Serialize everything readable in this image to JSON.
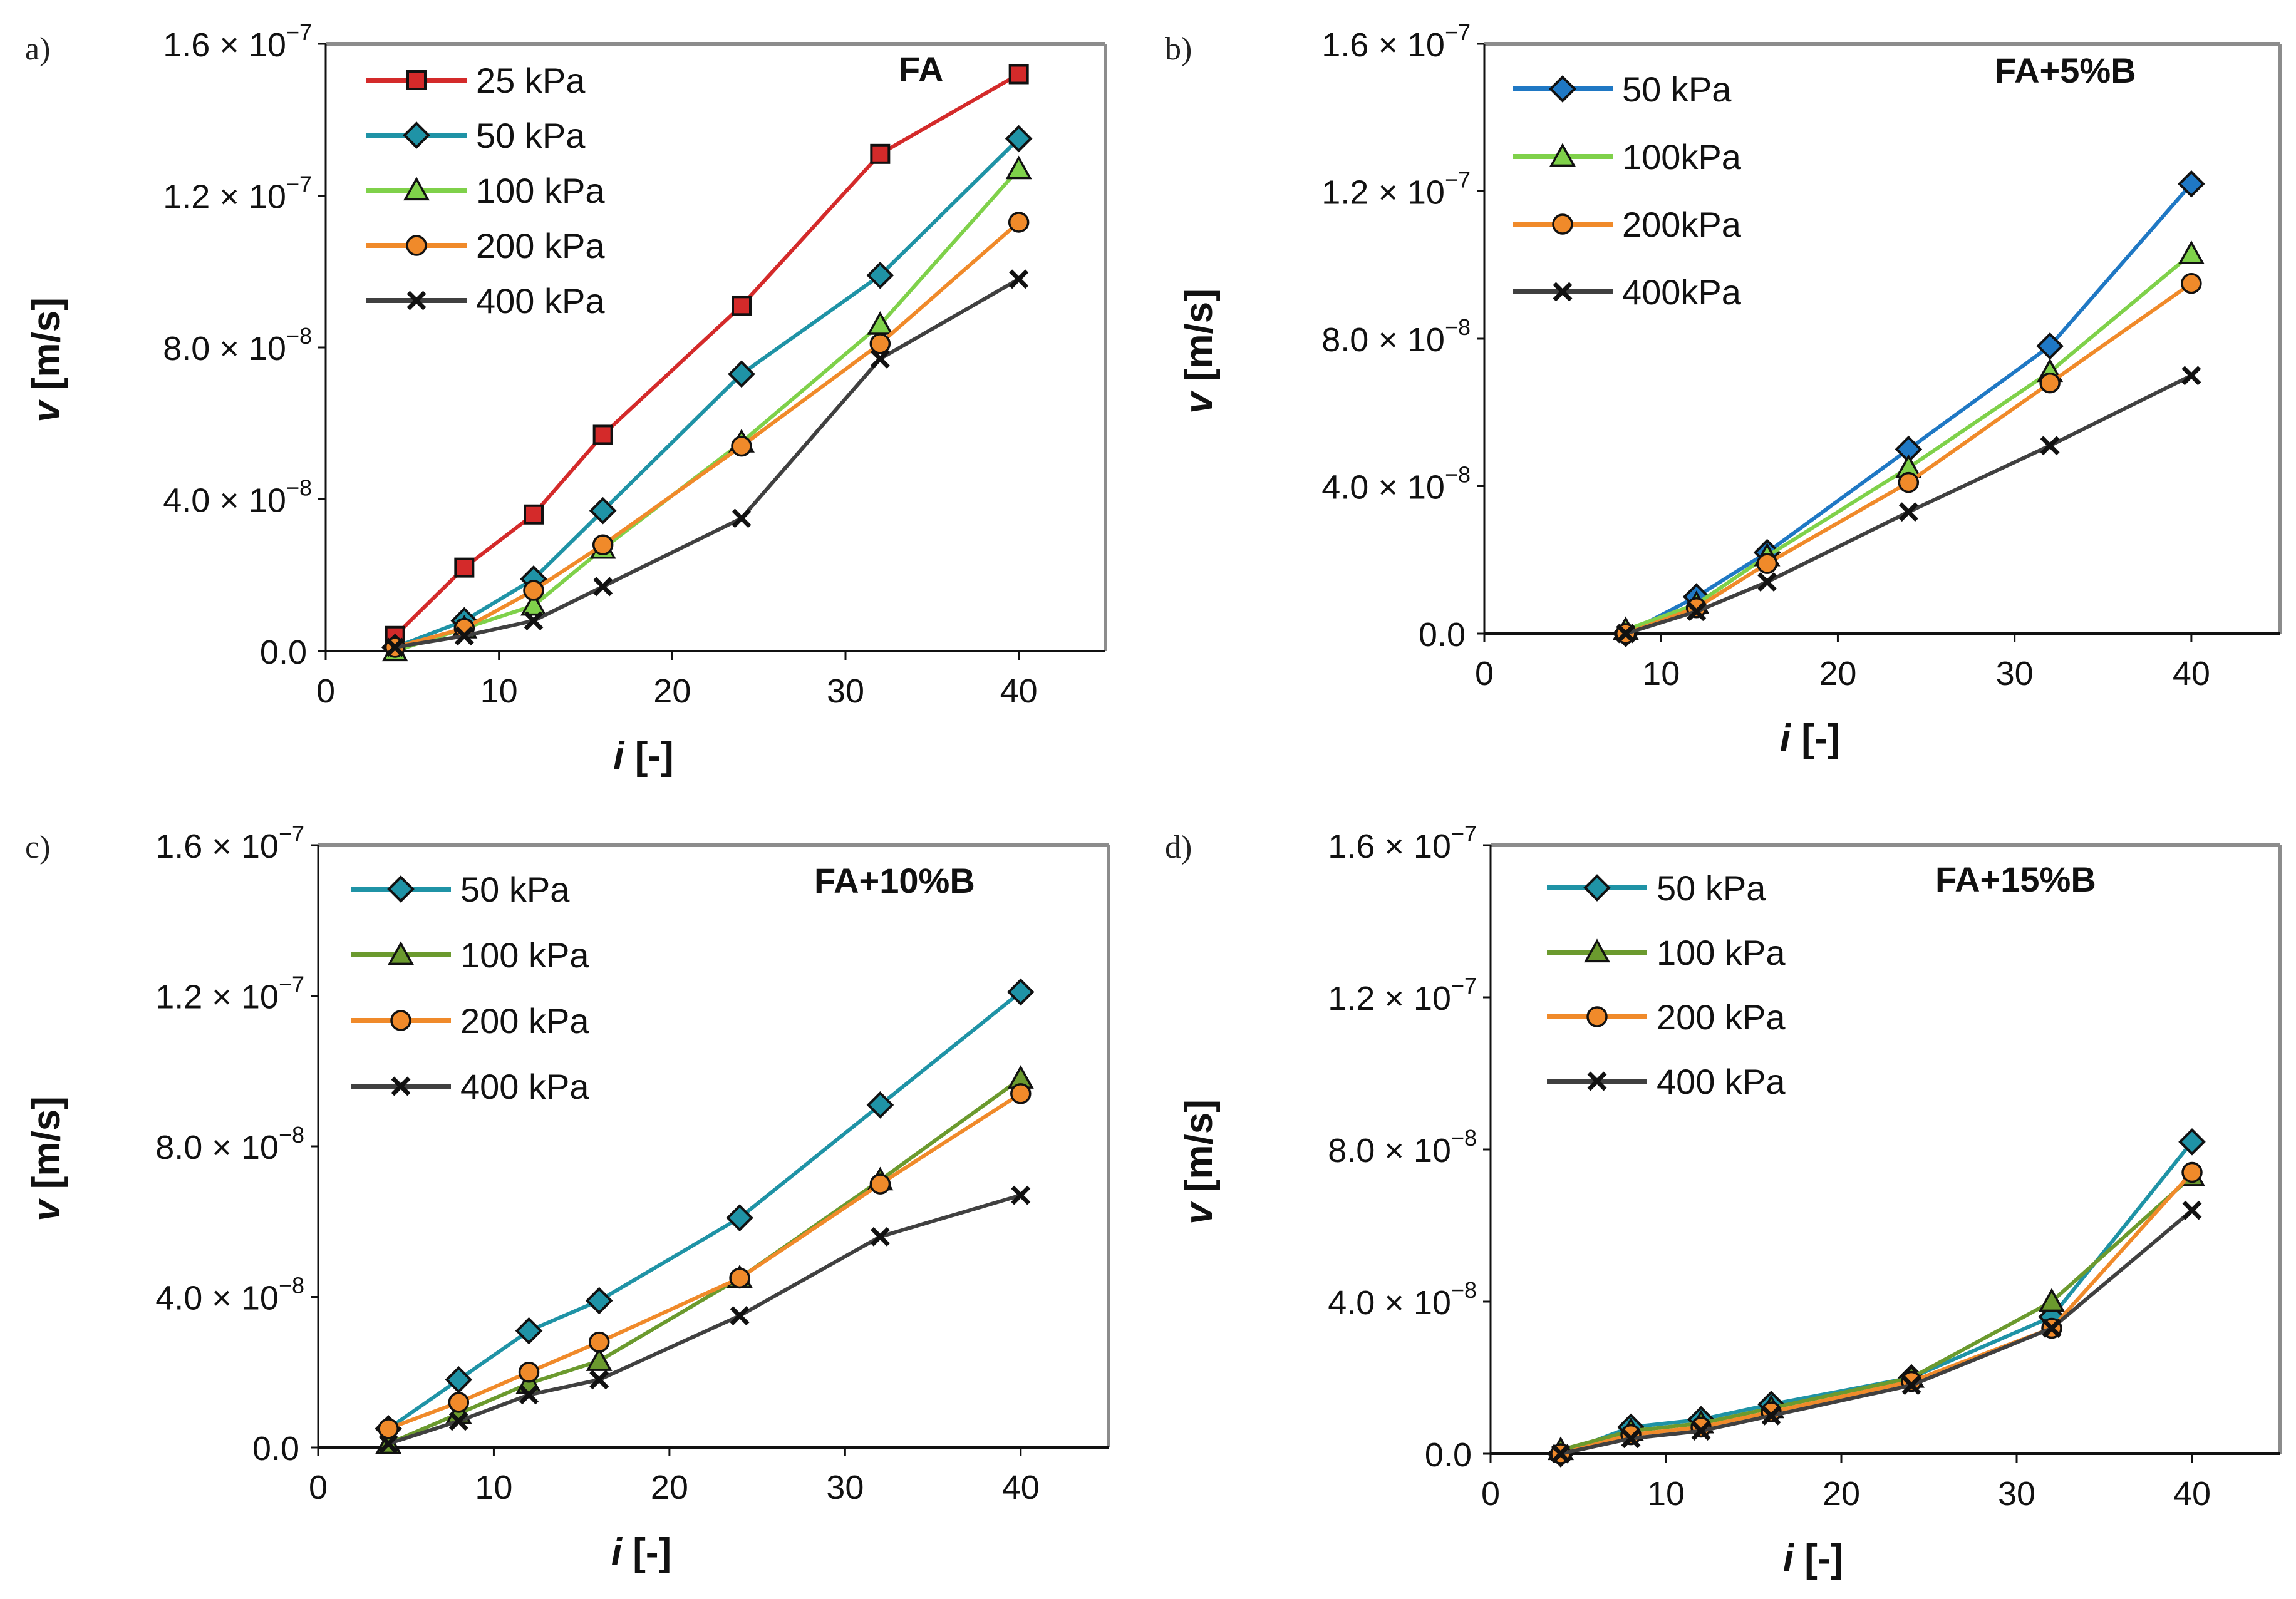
{
  "figure": {
    "colors": {
      "red": "#d42a2a",
      "teal": "#1f93a6",
      "blue": "#1f78c4",
      "light_green": "#7fd14a",
      "olive_green": "#6b9a2e",
      "orange": "#f08a2a",
      "gray": "#404040",
      "frame": "#8c8c8c"
    }
  },
  "chart_data": [
    {
      "panel": "a)",
      "type": "line",
      "annotation": "FA",
      "xlabel_italic": "i",
      "xlabel_rest": " [-]",
      "ylabel_italic": "v",
      "ylabel_rest": " [m/s]",
      "xlim": [
        0,
        45
      ],
      "ylim": [
        0,
        1.6e-07
      ],
      "xticks": [
        "0",
        "10",
        "20",
        "30",
        "40"
      ],
      "yticks": [
        {
          "mant": "0.0",
          "exp": ""
        },
        {
          "mant": "4.0 × 10",
          "exp": "−8"
        },
        {
          "mant": "8.0 × 10",
          "exp": "−8"
        },
        {
          "mant": "1.2 × 10",
          "exp": "−7"
        },
        {
          "mant": "1.6 × 10",
          "exp": "−7"
        }
      ],
      "legend_position": "top-left",
      "series": [
        {
          "name": "25 kPa",
          "color": "#d42a2a",
          "marker": "square",
          "x": [
            4,
            8,
            12,
            16,
            24,
            32,
            40
          ],
          "values": [
            4e-09,
            2.2e-08,
            3.6e-08,
            5.7e-08,
            9.1e-08,
            1.31e-07,
            1.52e-07
          ]
        },
        {
          "name": "50 kPa",
          "color": "#1f93a6",
          "marker": "diamond",
          "x": [
            4,
            8,
            12,
            16,
            24,
            32,
            40
          ],
          "values": [
            1e-09,
            8e-09,
            1.9e-08,
            3.7e-08,
            7.3e-08,
            9.9e-08,
            1.35e-07
          ]
        },
        {
          "name": "100 kPa",
          "color": "#7fd14a",
          "marker": "triangle",
          "x": [
            4,
            8,
            12,
            16,
            24,
            32,
            40
          ],
          "values": [
            0.0,
            6e-09,
            1.2e-08,
            2.7e-08,
            5.5e-08,
            8.6e-08,
            1.27e-07
          ]
        },
        {
          "name": "200 kPa",
          "color": "#f08a2a",
          "marker": "circle",
          "x": [
            4,
            8,
            12,
            16,
            24,
            32,
            40
          ],
          "values": [
            1e-09,
            6e-09,
            1.6e-08,
            2.8e-08,
            5.4e-08,
            8.1e-08,
            1.13e-07
          ]
        },
        {
          "name": "400 kPa",
          "color": "#404040",
          "marker": "x",
          "x": [
            4,
            8,
            12,
            16,
            24,
            32,
            40
          ],
          "values": [
            1e-09,
            4e-09,
            8e-09,
            1.7e-08,
            3.5e-08,
            7.7e-08,
            9.8e-08
          ]
        }
      ]
    },
    {
      "panel": "b)",
      "type": "line",
      "annotation": "FA+5%B",
      "xlabel_italic": "i",
      "xlabel_rest": " [-]",
      "ylabel_italic": "v",
      "ylabel_rest": " [m/s]",
      "xlim": [
        0,
        45
      ],
      "ylim": [
        0,
        1.6e-07
      ],
      "xticks": [
        "0",
        "10",
        "20",
        "30",
        "40"
      ],
      "yticks": [
        {
          "mant": "0.0",
          "exp": ""
        },
        {
          "mant": "4.0 × 10",
          "exp": "−8"
        },
        {
          "mant": "8.0 × 10",
          "exp": "−8"
        },
        {
          "mant": "1.2 × 10",
          "exp": "−7"
        },
        {
          "mant": "1.6 × 10",
          "exp": "−7"
        }
      ],
      "legend_position": "top-left",
      "series": [
        {
          "name": "50 kPa",
          "color": "#1f78c4",
          "marker": "diamond",
          "x": [
            8,
            12,
            16,
            24,
            32,
            40
          ],
          "values": [
            0.0,
            1e-08,
            2.2e-08,
            5e-08,
            7.8e-08,
            1.22e-07
          ]
        },
        {
          "name": "100kPa",
          "color": "#7fd14a",
          "marker": "triangle",
          "x": [
            8,
            12,
            16,
            24,
            32,
            40
          ],
          "values": [
            1e-09,
            8e-09,
            2.1e-08,
            4.5e-08,
            7.1e-08,
            1.03e-07
          ]
        },
        {
          "name": "200kPa",
          "color": "#f08a2a",
          "marker": "circle",
          "x": [
            8,
            12,
            16,
            24,
            32,
            40
          ],
          "values": [
            0.0,
            7e-09,
            1.9e-08,
            4.1e-08,
            6.8e-08,
            9.5e-08
          ]
        },
        {
          "name": "400kPa",
          "color": "#404040",
          "marker": "x",
          "x": [
            8,
            12,
            16,
            24,
            32,
            40
          ],
          "values": [
            0.0,
            6e-09,
            1.4e-08,
            3.3e-08,
            5.1e-08,
            7e-08
          ]
        }
      ]
    },
    {
      "panel": "c)",
      "type": "line",
      "annotation": "FA+10%B",
      "xlabel_italic": "i",
      "xlabel_rest": " [-]",
      "ylabel_italic": "v",
      "ylabel_rest": " [m/s]",
      "xlim": [
        0,
        45
      ],
      "ylim": [
        0,
        1.6e-07
      ],
      "xticks": [
        "0",
        "10",
        "20",
        "30",
        "40"
      ],
      "yticks": [
        {
          "mant": "0.0",
          "exp": ""
        },
        {
          "mant": "4.0 × 10",
          "exp": "−8"
        },
        {
          "mant": "8.0 × 10",
          "exp": "−8"
        },
        {
          "mant": "1.2 × 10",
          "exp": "−7"
        },
        {
          "mant": "1.6 × 10",
          "exp": "−7"
        }
      ],
      "legend_position": "top-left",
      "series": [
        {
          "name": "50 kPa",
          "color": "#1f93a6",
          "marker": "diamond",
          "x": [
            4,
            8,
            12,
            16,
            24,
            32,
            40
          ],
          "values": [
            5e-09,
            1.8e-08,
            3.1e-08,
            3.9e-08,
            6.1e-08,
            9.1e-08,
            1.21e-07
          ]
        },
        {
          "name": "100 kPa",
          "color": "#6b9a2e",
          "marker": "triangle",
          "x": [
            4,
            8,
            12,
            16,
            24,
            32,
            40
          ],
          "values": [
            1e-09,
            9e-09,
            1.7e-08,
            2.3e-08,
            4.5e-08,
            7.1e-08,
            9.8e-08
          ]
        },
        {
          "name": "200 kPa",
          "color": "#f08a2a",
          "marker": "circle",
          "x": [
            4,
            8,
            12,
            16,
            24,
            32,
            40
          ],
          "values": [
            5e-09,
            1.2e-08,
            2e-08,
            2.8e-08,
            4.5e-08,
            7e-08,
            9.4e-08
          ]
        },
        {
          "name": "400 kPa",
          "color": "#404040",
          "marker": "x",
          "x": [
            4,
            8,
            12,
            16,
            24,
            32,
            40
          ],
          "values": [
            1e-09,
            7e-09,
            1.4e-08,
            1.8e-08,
            3.5e-08,
            5.6e-08,
            6.7e-08
          ]
        }
      ]
    },
    {
      "panel": "d)",
      "type": "line",
      "annotation": "FA+15%B",
      "xlabel_italic": "i",
      "xlabel_rest": " [-]",
      "ylabel_italic": "v",
      "ylabel_rest": " [m/s]",
      "xlim": [
        0,
        45
      ],
      "ylim": [
        0,
        1.6e-07
      ],
      "xticks": [
        "0",
        "10",
        "20",
        "30",
        "40"
      ],
      "yticks": [
        {
          "mant": "0.0",
          "exp": ""
        },
        {
          "mant": "4.0 × 10",
          "exp": "−8"
        },
        {
          "mant": "8.0 × 10",
          "exp": "−8"
        },
        {
          "mant": "1.2 × 10",
          "exp": "−7"
        },
        {
          "mant": "1.6 × 10",
          "exp": "−7"
        }
      ],
      "legend_position": "top-left",
      "series": [
        {
          "name": "50 kPa",
          "color": "#1f93a6",
          "marker": "diamond",
          "x": [
            4,
            8,
            12,
            16,
            24,
            32,
            40
          ],
          "values": [
            0.0,
            7e-09,
            9e-09,
            1.3e-08,
            2e-08,
            3.6e-08,
            8.2e-08
          ]
        },
        {
          "name": "100 kPa",
          "color": "#6b9a2e",
          "marker": "triangle",
          "x": [
            4,
            8,
            12,
            16,
            24,
            32,
            40
          ],
          "values": [
            1e-09,
            6e-09,
            8e-09,
            1.2e-08,
            2e-08,
            4e-08,
            7.3e-08
          ]
        },
        {
          "name": "200 kPa",
          "color": "#f08a2a",
          "marker": "circle",
          "x": [
            4,
            8,
            12,
            16,
            24,
            32,
            40
          ],
          "values": [
            0.0,
            5e-09,
            7e-09,
            1.1e-08,
            1.9e-08,
            3.3e-08,
            7.4e-08
          ]
        },
        {
          "name": "400 kPa",
          "color": "#404040",
          "marker": "x",
          "x": [
            4,
            8,
            12,
            16,
            24,
            32,
            40
          ],
          "values": [
            0.0,
            4e-09,
            6e-09,
            1e-08,
            1.8e-08,
            3.3e-08,
            6.4e-08
          ]
        }
      ]
    }
  ]
}
